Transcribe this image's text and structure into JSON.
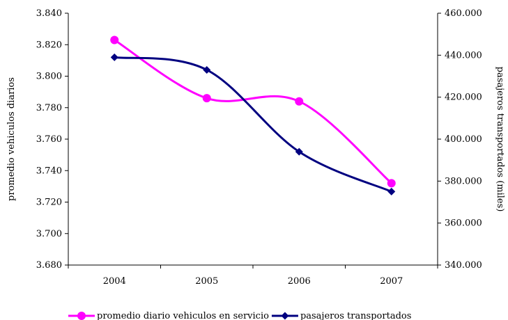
{
  "chart_data": {
    "type": "line",
    "categories": [
      "2004",
      "2005",
      "2006",
      "2007"
    ],
    "ylabel": "promedio vehiculos diarios",
    "y2label": "pasajeros transportados (miles)",
    "ylim": [
      3.68,
      3.84
    ],
    "y_ticks": [
      "3.680",
      "3.700",
      "3.720",
      "3.740",
      "3.760",
      "3.780",
      "3.800",
      "3.820",
      "3.840"
    ],
    "y2lim": [
      340000,
      460000
    ],
    "y2_ticks": [
      "340.000",
      "360.000",
      "380.000",
      "400.000",
      "420.000",
      "440.000",
      "460.000"
    ],
    "grid": false,
    "legend_position": "bottom",
    "series": [
      {
        "name": "promedio diario vehiculos en servicio",
        "axis": "left",
        "color": "#ff00ff",
        "marker": "circle",
        "values": [
          3.823,
          3.786,
          3.784,
          3.732
        ]
      },
      {
        "name": "pasajeros transportados",
        "axis": "right",
        "color": "#000080",
        "marker": "diamond",
        "values": [
          439000,
          433000,
          394000,
          375000
        ]
      }
    ]
  }
}
